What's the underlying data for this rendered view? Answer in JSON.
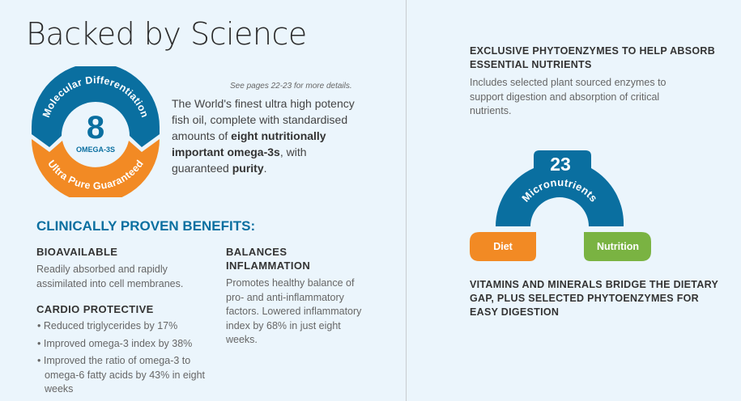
{
  "title": "Backed by Science",
  "badge": {
    "top": "Molecular Differentiation",
    "bottom": "Ultra Pure Guaranteed",
    "number": "8",
    "label": "OMEGA-3S"
  },
  "note": "See pages 22-23 for more details.",
  "intro": {
    "t1": "The World's finest ultra high potency fish oil, complete with standardised amounts of ",
    "b1": "eight nutritionally important omega-3s",
    "t2": ", with guaranteed ",
    "b2": "purity",
    "t3": "."
  },
  "benefits": {
    "heading": "CLINICALLY PROVEN BENEFITS:",
    "bioavailable": {
      "title": "BIOAVAILABLE",
      "text": "Readily absorbed and rapidly assimilated into cell membranes."
    },
    "cardio": {
      "title": "CARDIO PROTECTIVE",
      "items": [
        "Reduced triglycerides by 17%",
        "Improved omega-3 index by 38%",
        "Improved the ratio of omega-3 to omega-6 fatty acids by 43% in eight weeks"
      ]
    },
    "inflammation": {
      "title": "BALANCES INFLAMMATION",
      "text": "Promotes healthy balance of pro- and anti-inflammatory factors. Lowered inflammatory index by 68% in just eight weeks."
    }
  },
  "right": {
    "enzymes_title": "EXCLUSIVE PHYTOENZYMES TO HELP ABSORB ESSENTIAL NUTRIENTS",
    "enzymes_text": "Includes selected plant sourced enzymes to support digestion and absorption of critical nutrients.",
    "arch": {
      "number": "23",
      "label": "Micronutrients",
      "left": "Diet",
      "right": "Nutrition"
    },
    "bottom_title": "VITAMINS AND MINERALS BRIDGE THE DIETARY GAP, PLUS SELECTED PHYTOENZYMES FOR EASY DIGESTION"
  },
  "colors": {
    "blue": "#0a6fa0",
    "orange": "#f28a24",
    "green": "#7ab342"
  }
}
